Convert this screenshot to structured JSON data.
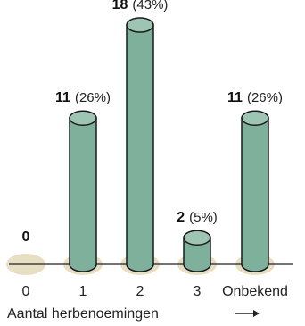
{
  "chart_data": {
    "type": "bar",
    "title": "",
    "xlabel": "Aantal herbenoemingen",
    "ylabel": "",
    "categories": [
      "0",
      "1",
      "2",
      "3",
      "Onbekend"
    ],
    "values": [
      0,
      11,
      18,
      2,
      11
    ],
    "labels": [
      {
        "count": "0",
        "pct": ""
      },
      {
        "count": "11",
        "pct": "(26%)"
      },
      {
        "count": "18",
        "pct": "(43%)"
      },
      {
        "count": "2",
        "pct": "(5%)"
      },
      {
        "count": "11",
        "pct": "(26%)"
      }
    ],
    "ylim": [
      0,
      18
    ],
    "grid": false,
    "legend": "none",
    "colors": {
      "bar": "#7fb09c",
      "bar_top": "#9ec4b4",
      "bar_outline": "#1a1a1a",
      "base_ellipse": "#e6dfc4",
      "axis": "#222222"
    },
    "arrow_icon": "right-arrow-icon"
  }
}
